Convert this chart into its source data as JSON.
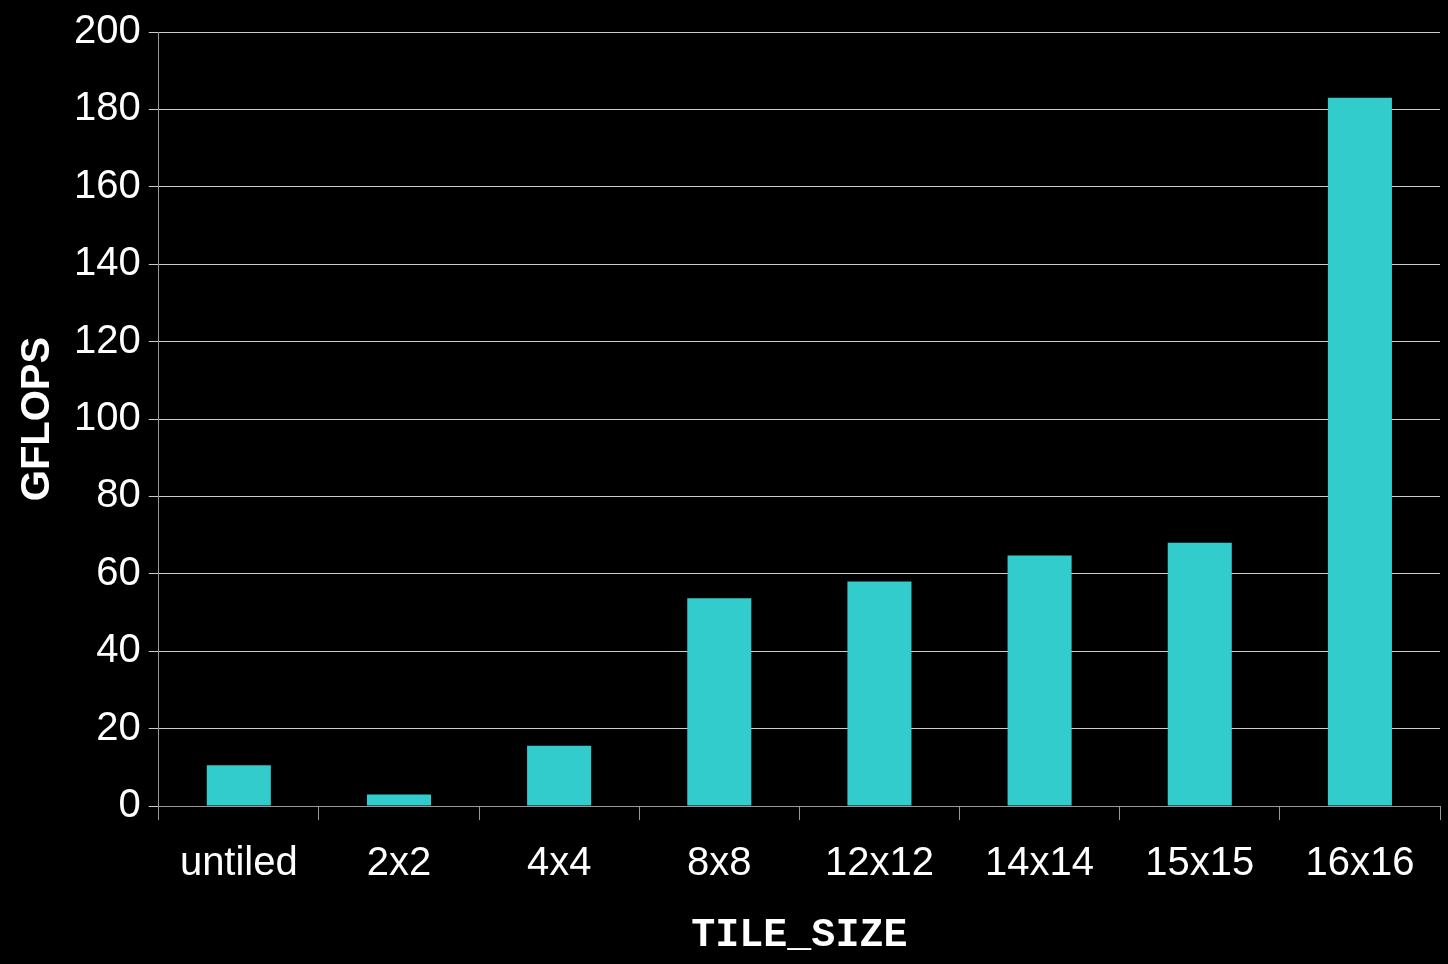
{
  "chart_data": {
    "type": "bar",
    "xlabel": "TILE_SIZE",
    "ylabel": "GFLOPS",
    "categories": [
      "untiled",
      "2x2",
      "4x4",
      "8x8",
      "12x12",
      "14x14",
      "15x15",
      "16x16"
    ],
    "values": [
      10.5,
      3,
      15.6,
      53.7,
      58,
      64.7,
      68,
      183
    ],
    "color": "#33cccc",
    "ylim": [
      0,
      200
    ],
    "yticks": [
      0,
      20,
      40,
      60,
      80,
      100,
      120,
      140,
      160,
      180,
      200
    ],
    "grid": "y"
  }
}
